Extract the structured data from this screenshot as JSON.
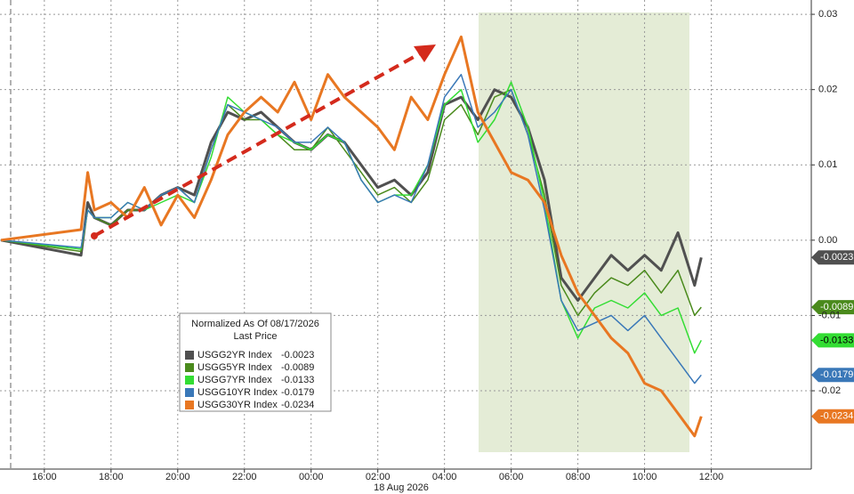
{
  "chart_data": {
    "type": "line",
    "x_date_label": "18 Aug 2026",
    "x": [
      14.7,
      17.1,
      17.3,
      17.5,
      18,
      18.5,
      19,
      19.5,
      20,
      20.5,
      21,
      21.5,
      22,
      22.5,
      23,
      23.5,
      24,
      24.5,
      25,
      25.5,
      26,
      26.5,
      27,
      27.5,
      28,
      28.5,
      29,
      29.5,
      30,
      30.5,
      31,
      31.5,
      32,
      32.5,
      33,
      33.5,
      34,
      34.5,
      35,
      35.5,
      35.7
    ],
    "xlim": [
      14.67,
      39
    ],
    "xticks": [
      {
        "value": 16,
        "label": "16:00"
      },
      {
        "value": 18,
        "label": "18:00"
      },
      {
        "value": 20,
        "label": "20:00"
      },
      {
        "value": 22,
        "label": "22:00"
      },
      {
        "value": 24,
        "label": "00:00"
      },
      {
        "value": 26,
        "label": "02:00"
      },
      {
        "value": 28,
        "label": "04:00"
      },
      {
        "value": 30,
        "label": "06:00"
      },
      {
        "value": 32,
        "label": "08:00"
      },
      {
        "value": 34,
        "label": "10:00"
      },
      {
        "value": 36,
        "label": "12:00"
      }
    ],
    "ylim": [
      -0.0304,
      0.0319
    ],
    "yticks": [
      0.03,
      0.02,
      0.01,
      {
        "value": 0,
        "label": "0.00"
      },
      -0.01,
      -0.02
    ],
    "grid": true,
    "legend": {
      "title": "Normalized As Of 08/17/2026",
      "subtitle": "Last Price"
    },
    "series": [
      {
        "name": "USGG2YR Index",
        "color": "#505050",
        "values": [
          0,
          -0.002,
          0.005,
          0.003,
          0.002,
          0.004,
          0.004,
          0.006,
          0.007,
          0.006,
          0.013,
          0.017,
          0.016,
          0.017,
          0.015,
          0.013,
          0.012,
          0.014,
          0.013,
          0.01,
          0.007,
          0.008,
          0.006,
          0.009,
          0.018,
          0.019,
          0.016,
          0.02,
          0.019,
          0.015,
          0.008,
          -0.005,
          -0.008,
          -0.005,
          -0.002,
          -0.004,
          -0.002,
          -0.004,
          0.001,
          -0.006,
          -0.0023
        ]
      },
      {
        "name": "USGG5YR Index",
        "color": "#4a8a1c",
        "values": [
          0,
          -0.0015,
          0.004,
          0.003,
          0.002,
          0.004,
          0.004,
          0.006,
          0.007,
          0.005,
          0.012,
          0.018,
          0.016,
          0.016,
          0.014,
          0.012,
          0.012,
          0.015,
          0.012,
          0.009,
          0.006,
          0.007,
          0.005,
          0.008,
          0.016,
          0.018,
          0.014,
          0.019,
          0.02,
          0.014,
          0.006,
          -0.006,
          -0.01,
          -0.007,
          -0.005,
          -0.006,
          -0.004,
          -0.007,
          -0.004,
          -0.01,
          -0.0089
        ]
      },
      {
        "name": "USGG7YR Index",
        "color": "#33dd33",
        "values": [
          0,
          -0.0012,
          0.004,
          0.003,
          0.003,
          0.005,
          0.004,
          0.005,
          0.006,
          0.005,
          0.011,
          0.019,
          0.017,
          0.016,
          0.014,
          0.013,
          0.012,
          0.014,
          0.013,
          0.008,
          0.005,
          0.006,
          0.006,
          0.01,
          0.018,
          0.02,
          0.013,
          0.016,
          0.021,
          0.015,
          0.005,
          -0.008,
          -0.013,
          -0.009,
          -0.008,
          -0.009,
          -0.007,
          -0.01,
          -0.009,
          -0.015,
          -0.0133
        ]
      },
      {
        "name": "USGG10YR Index",
        "color": "#3a78b8",
        "values": [
          0,
          -0.001,
          0.004,
          0.003,
          0.003,
          0.005,
          0.004,
          0.006,
          0.007,
          0.005,
          0.012,
          0.018,
          0.017,
          0.016,
          0.015,
          0.013,
          0.013,
          0.015,
          0.013,
          0.008,
          0.005,
          0.006,
          0.005,
          0.01,
          0.019,
          0.022,
          0.015,
          0.017,
          0.02,
          0.014,
          0.004,
          -0.008,
          -0.012,
          -0.011,
          -0.01,
          -0.012,
          -0.01,
          -0.013,
          -0.016,
          -0.019,
          -0.0179
        ]
      },
      {
        "name": "USGG30YR Index",
        "color": "#e87722",
        "values": [
          0,
          0.0014,
          0.009,
          0.004,
          0.005,
          0.003,
          0.007,
          0.002,
          0.006,
          0.003,
          0.008,
          0.014,
          0.017,
          0.019,
          0.017,
          0.021,
          0.016,
          0.022,
          0.019,
          0.017,
          0.015,
          0.012,
          0.019,
          0.016,
          0.022,
          0.027,
          0.017,
          0.013,
          0.009,
          0.008,
          0.005,
          -0.002,
          -0.007,
          -0.01,
          -0.013,
          -0.015,
          -0.019,
          -0.02,
          -0.023,
          -0.026,
          -0.0234
        ]
      }
    ]
  }
}
